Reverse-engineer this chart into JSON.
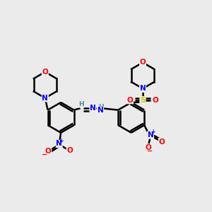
{
  "background_color": "#ebebeb",
  "bond_color": "#000000",
  "atom_colors": {
    "O": "#ff0000",
    "N": "#0000ff",
    "S": "#cccc00",
    "H": "#4a9090",
    "C": "#000000"
  },
  "figsize": [
    3.0,
    3.0
  ],
  "dpi": 100,
  "lw": 1.8,
  "br": 0.072,
  "lbx": 0.285,
  "lby": 0.445,
  "rbx": 0.62,
  "rby": 0.445
}
